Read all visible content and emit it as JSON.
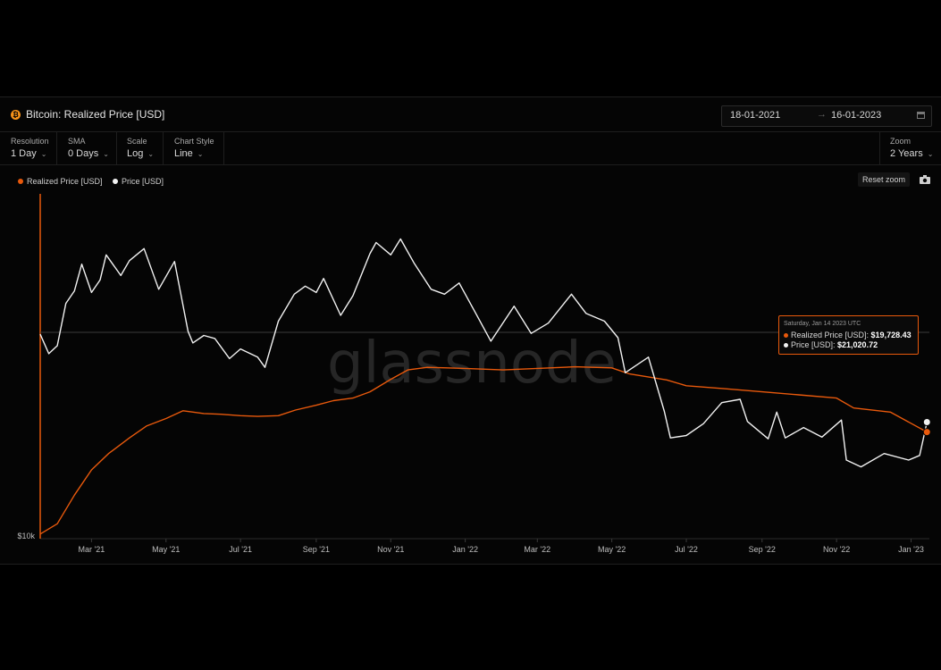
{
  "header": {
    "title": "Bitcoin: Realized Price [USD]",
    "date_from": "18-01-2021",
    "date_arrow": "→",
    "date_to": "16-01-2023"
  },
  "controls": {
    "resolution": {
      "label": "Resolution",
      "value": "1 Day"
    },
    "sma": {
      "label": "SMA",
      "value": "0 Days"
    },
    "scale": {
      "label": "Scale",
      "value": "Log"
    },
    "chart_style": {
      "label": "Chart Style",
      "value": "Line"
    },
    "zoom": {
      "label": "Zoom",
      "value": "2 Years"
    }
  },
  "reset_zoom_label": "Reset zoom",
  "watermark": "glassnode",
  "tooltip": {
    "date": "Saturday, Jan 14 2023 UTC",
    "realized_label": "Realized Price [USD]:",
    "realized_value": "$19,728.43",
    "price_label": "Price [USD]:",
    "price_value": "$21,020.72"
  },
  "colors": {
    "realized": "#e8590c",
    "price": "#f2f2f2",
    "background": "#050505",
    "crosshair": "#3a3a3a"
  },
  "chart_data": {
    "type": "line",
    "scale": "log",
    "title": "Bitcoin: Realized Price [USD]",
    "x_range": [
      "2021-01-18",
      "2023-01-16"
    ],
    "ylim": [
      10000,
      90000
    ],
    "y_tick_labels": [
      "$10k"
    ],
    "x_tick_labels": [
      "Mar '21",
      "May '21",
      "Jul '21",
      "Sep '21",
      "Nov '21",
      "Jan '22",
      "Mar '22",
      "May '22",
      "Jul '22",
      "Sep '22",
      "Nov '22",
      "Jan '23"
    ],
    "x_ticks": [
      "2021-03-01",
      "2021-05-01",
      "2021-07-01",
      "2021-09-01",
      "2021-11-01",
      "2022-01-01",
      "2022-03-01",
      "2022-05-01",
      "2022-07-01",
      "2022-09-01",
      "2022-11-01",
      "2023-01-01"
    ],
    "grid": false,
    "legend_position": "top-left",
    "series": [
      {
        "name": "Realized Price [USD]",
        "color": "#e8590c",
        "points": [
          [
            "2021-01-18",
            10300
          ],
          [
            "2021-02-01",
            11000
          ],
          [
            "2021-02-15",
            13200
          ],
          [
            "2021-03-01",
            15500
          ],
          [
            "2021-03-15",
            17200
          ],
          [
            "2021-04-01",
            19000
          ],
          [
            "2021-04-15",
            20500
          ],
          [
            "2021-05-01",
            21500
          ],
          [
            "2021-05-15",
            22600
          ],
          [
            "2021-06-01",
            22200
          ],
          [
            "2021-06-15",
            22100
          ],
          [
            "2021-07-01",
            21900
          ],
          [
            "2021-07-15",
            21800
          ],
          [
            "2021-08-01",
            21900
          ],
          [
            "2021-08-15",
            22700
          ],
          [
            "2021-09-01",
            23400
          ],
          [
            "2021-09-15",
            24100
          ],
          [
            "2021-10-01",
            24500
          ],
          [
            "2021-10-15",
            25500
          ],
          [
            "2021-11-01",
            27600
          ],
          [
            "2021-11-15",
            29300
          ],
          [
            "2021-12-01",
            29800
          ],
          [
            "2022-01-01",
            29600
          ],
          [
            "2022-02-01",
            29300
          ],
          [
            "2022-03-01",
            29600
          ],
          [
            "2022-04-01",
            29900
          ],
          [
            "2022-05-01",
            29700
          ],
          [
            "2022-05-15",
            28600
          ],
          [
            "2022-06-15",
            27500
          ],
          [
            "2022-07-01",
            26500
          ],
          [
            "2022-08-01",
            26000
          ],
          [
            "2022-09-01",
            25500
          ],
          [
            "2022-10-01",
            25000
          ],
          [
            "2022-11-01",
            24500
          ],
          [
            "2022-11-15",
            23000
          ],
          [
            "2022-12-15",
            22400
          ],
          [
            "2023-01-14",
            19728.43
          ]
        ]
      },
      {
        "name": "Price [USD]",
        "color": "#f2f2f2",
        "points": [
          [
            "2021-01-18",
            36800
          ],
          [
            "2021-01-25",
            32500
          ],
          [
            "2021-02-01",
            34200
          ],
          [
            "2021-02-08",
            44800
          ],
          [
            "2021-02-15",
            48500
          ],
          [
            "2021-02-21",
            57500
          ],
          [
            "2021-03-01",
            48000
          ],
          [
            "2021-03-08",
            52000
          ],
          [
            "2021-03-13",
            61000
          ],
          [
            "2021-03-25",
            53500
          ],
          [
            "2021-04-01",
            58800
          ],
          [
            "2021-04-13",
            63500
          ],
          [
            "2021-04-25",
            49000
          ],
          [
            "2021-05-08",
            58500
          ],
          [
            "2021-05-19",
            37500
          ],
          [
            "2021-05-23",
            34800
          ],
          [
            "2021-06-01",
            36500
          ],
          [
            "2021-06-10",
            35800
          ],
          [
            "2021-06-22",
            31500
          ],
          [
            "2021-07-01",
            33500
          ],
          [
            "2021-07-15",
            31800
          ],
          [
            "2021-07-21",
            29800
          ],
          [
            "2021-08-01",
            40000
          ],
          [
            "2021-08-14",
            47500
          ],
          [
            "2021-08-23",
            50000
          ],
          [
            "2021-09-01",
            48000
          ],
          [
            "2021-09-07",
            52500
          ],
          [
            "2021-09-21",
            41500
          ],
          [
            "2021-10-01",
            47000
          ],
          [
            "2021-10-15",
            61500
          ],
          [
            "2021-10-20",
            66000
          ],
          [
            "2021-11-01",
            61000
          ],
          [
            "2021-11-09",
            67500
          ],
          [
            "2021-11-20",
            58000
          ],
          [
            "2021-12-04",
            49000
          ],
          [
            "2021-12-15",
            47500
          ],
          [
            "2021-12-27",
            51000
          ],
          [
            "2022-01-10",
            41800
          ],
          [
            "2022-01-22",
            35200
          ],
          [
            "2022-02-10",
            44000
          ],
          [
            "2022-02-24",
            37000
          ],
          [
            "2022-03-10",
            39500
          ],
          [
            "2022-03-29",
            47500
          ],
          [
            "2022-04-10",
            42000
          ],
          [
            "2022-04-25",
            40000
          ],
          [
            "2022-05-06",
            36000
          ],
          [
            "2022-05-12",
            28800
          ],
          [
            "2022-05-31",
            31800
          ],
          [
            "2022-06-13",
            22500
          ],
          [
            "2022-06-18",
            19000
          ],
          [
            "2022-07-01",
            19300
          ],
          [
            "2022-07-15",
            20800
          ],
          [
            "2022-07-30",
            23800
          ],
          [
            "2022-08-14",
            24300
          ],
          [
            "2022-08-20",
            21100
          ],
          [
            "2022-09-06",
            18900
          ],
          [
            "2022-09-13",
            22400
          ],
          [
            "2022-09-20",
            19000
          ],
          [
            "2022-10-05",
            20300
          ],
          [
            "2022-10-20",
            19100
          ],
          [
            "2022-11-05",
            21300
          ],
          [
            "2022-11-09",
            16500
          ],
          [
            "2022-11-21",
            15800
          ],
          [
            "2022-12-10",
            17200
          ],
          [
            "2022-12-30",
            16500
          ],
          [
            "2023-01-08",
            17000
          ],
          [
            "2023-01-14",
            21020.72
          ],
          [
            "2023-01-16",
            21200
          ]
        ]
      }
    ]
  }
}
